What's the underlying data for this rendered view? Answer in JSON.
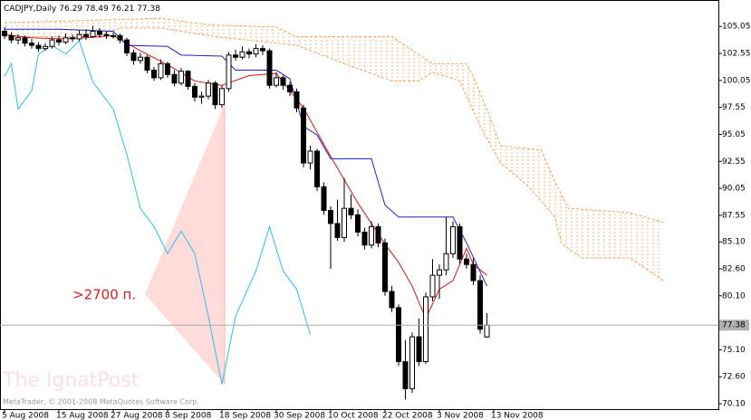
{
  "chart_data": {
    "type": "candlestick",
    "title": "CADJPY,Daily",
    "ohlc": [
      [
        104.6,
        105.0,
        103.9,
        104.2
      ],
      [
        104.2,
        104.5,
        103.5,
        103.8
      ],
      [
        103.8,
        104.3,
        103.4,
        104.0
      ],
      [
        104.0,
        104.2,
        103.2,
        103.5
      ],
      [
        103.5,
        103.9,
        103.0,
        103.3
      ],
      [
        103.3,
        103.6,
        102.7,
        103.0
      ],
      [
        103.0,
        103.5,
        102.8,
        103.2
      ],
      [
        103.2,
        104.1,
        103.0,
        103.8
      ],
      [
        103.8,
        104.2,
        103.3,
        103.6
      ],
      [
        103.6,
        104.4,
        103.4,
        104.0
      ],
      [
        104.0,
        104.3,
        103.6,
        103.9
      ],
      [
        103.9,
        104.7,
        103.7,
        104.3
      ],
      [
        104.3,
        104.8,
        103.8,
        104.1
      ],
      [
        104.1,
        105.1,
        104.0,
        104.6
      ],
      [
        104.6,
        104.9,
        104.0,
        104.3
      ],
      [
        104.3,
        104.6,
        103.9,
        104.2
      ],
      [
        104.2,
        104.5,
        103.9,
        104.2
      ],
      [
        104.2,
        104.4,
        103.5,
        103.8
      ],
      [
        103.8,
        104.0,
        102.3,
        102.6
      ],
      [
        102.6,
        102.9,
        101.5,
        101.9
      ],
      [
        101.9,
        102.6,
        101.6,
        102.2
      ],
      [
        102.2,
        102.4,
        100.7,
        101.0
      ],
      [
        101.0,
        101.3,
        100.0,
        100.3
      ],
      [
        100.3,
        102.0,
        100.1,
        101.6
      ],
      [
        101.6,
        101.8,
        100.3,
        100.6
      ],
      [
        100.6,
        101.0,
        99.5,
        99.8
      ],
      [
        99.8,
        101.2,
        99.6,
        100.9
      ],
      [
        100.9,
        101.0,
        99.2,
        99.5
      ],
      [
        99.5,
        99.8,
        98.1,
        98.5
      ],
      [
        98.5,
        99.0,
        97.9,
        98.6
      ],
      [
        98.6,
        100.1,
        98.3,
        99.8
      ],
      [
        99.8,
        100.0,
        97.4,
        97.8
      ],
      [
        97.8,
        99.6,
        97.5,
        99.3
      ],
      [
        99.3,
        102.7,
        99.0,
        102.4
      ],
      [
        102.4,
        102.9,
        101.9,
        102.2
      ],
      [
        102.2,
        103.2,
        102.0,
        102.7
      ],
      [
        102.7,
        103.0,
        102.1,
        102.5
      ],
      [
        102.5,
        103.4,
        102.2,
        103.0
      ],
      [
        103.0,
        103.3,
        102.4,
        102.8
      ],
      [
        102.8,
        103.0,
        99.3,
        99.6
      ],
      [
        99.6,
        100.8,
        99.4,
        100.3
      ],
      [
        100.3,
        100.5,
        99.2,
        99.6
      ],
      [
        99.6,
        99.9,
        98.6,
        99.0
      ],
      [
        99.0,
        99.3,
        97.1,
        97.5
      ],
      [
        97.5,
        97.8,
        92.0,
        92.4
      ],
      [
        92.4,
        94.0,
        91.8,
        93.5
      ],
      [
        93.5,
        93.7,
        89.8,
        90.2
      ],
      [
        90.2,
        90.6,
        87.6,
        88.0
      ],
      [
        88.0,
        88.4,
        82.6,
        86.8
      ],
      [
        86.8,
        89.0,
        85.2,
        85.5
      ],
      [
        85.5,
        91.0,
        85.1,
        88.2
      ],
      [
        88.2,
        89.5,
        87.2,
        87.6
      ],
      [
        87.6,
        88.1,
        85.6,
        86.0
      ],
      [
        86.0,
        86.4,
        84.4,
        84.8
      ],
      [
        84.8,
        87.0,
        84.5,
        86.5
      ],
      [
        86.5,
        86.8,
        84.6,
        85.0
      ],
      [
        85.0,
        85.4,
        80.1,
        80.5
      ],
      [
        80.5,
        81.0,
        78.6,
        79.0
      ],
      [
        79.0,
        79.3,
        73.6,
        74.0
      ],
      [
        74.0,
        76.0,
        70.5,
        71.5
      ],
      [
        71.5,
        76.7,
        71.1,
        76.3
      ],
      [
        76.3,
        78.0,
        73.6,
        74.0
      ],
      [
        74.0,
        80.4,
        73.8,
        80.0
      ],
      [
        80.0,
        83.5,
        79.6,
        82.0
      ],
      [
        82.0,
        83.0,
        79.8,
        82.5
      ],
      [
        82.5,
        87.4,
        82.0,
        84.0
      ],
      [
        84.0,
        87.0,
        83.6,
        86.5
      ],
      [
        86.5,
        86.8,
        83.1,
        83.5
      ],
      [
        83.5,
        84.0,
        82.6,
        83.0
      ],
      [
        83.0,
        83.6,
        81.1,
        81.5
      ],
      [
        81.5,
        82.0,
        76.6,
        77.0
      ],
      [
        76.29,
        78.49,
        76.21,
        77.38
      ]
    ],
    "series": [
      {
        "color": "#e01010",
        "x": [
          0,
          4,
          8,
          12,
          16,
          20,
          24,
          28,
          32,
          36,
          40,
          44,
          48,
          52,
          56,
          58,
          60,
          62,
          64,
          66,
          68,
          69,
          71
        ],
        "values": [
          104.3,
          104.0,
          103.9,
          104.0,
          104.2,
          102.8,
          101.5,
          100.0,
          99.6,
          100.5,
          100.7,
          97.5,
          93.0,
          88.7,
          84.9,
          83.2,
          81.0,
          78.0,
          80.7,
          81.5,
          84.5,
          83.0,
          82.0
        ]
      },
      {
        "color": "#2020c0",
        "x": [
          0,
          8,
          16,
          18,
          24,
          26,
          32,
          34,
          40,
          42,
          44,
          46,
          48,
          54,
          56,
          58,
          66,
          68,
          71
        ],
        "values": [
          104.8,
          104.8,
          104.6,
          103.3,
          103.2,
          102.4,
          102.3,
          101.0,
          101.0,
          100.2,
          95.8,
          95.0,
          92.8,
          92.8,
          88.5,
          87.4,
          87.4,
          85.0,
          81.0
        ]
      },
      {
        "color": "#33bbee",
        "x": [
          0,
          1,
          2,
          4,
          5,
          7,
          9,
          11,
          13,
          16,
          18,
          20,
          22,
          24,
          26,
          28,
          30,
          32,
          34,
          37,
          39,
          41,
          43,
          45
        ],
        "values": [
          100.4,
          101.6,
          97.4,
          99.1,
          102.5,
          103.3,
          102.5,
          103.7,
          99.9,
          97.4,
          93.2,
          88.2,
          86.5,
          84.0,
          86.1,
          84.0,
          78.2,
          71.9,
          78.2,
          82.4,
          86.5,
          82.4,
          80.7,
          76.5
        ]
      },
      {
        "color": "#f4a460",
        "style": "dashed",
        "x": [
          0,
          23,
          30,
          40,
          43,
          57,
          63,
          68,
          69,
          71,
          73,
          79,
          81,
          83,
          92,
          97
        ],
        "values": [
          105.4,
          105.8,
          105.2,
          105.0,
          104.1,
          104.1,
          101.6,
          101.6,
          100.4,
          97.4,
          94.0,
          93.6,
          90.7,
          88.2,
          87.8,
          86.9
        ]
      },
      {
        "color": "#f4a460",
        "style": "dashed",
        "x": [
          0,
          13,
          17,
          23,
          31,
          43,
          50,
          57,
          61,
          63,
          67,
          70,
          73,
          77,
          81,
          82,
          85,
          92,
          97
        ],
        "values": [
          104.1,
          104.1,
          104.9,
          104.9,
          104.1,
          103.3,
          101.6,
          100.0,
          100.0,
          100.8,
          100.0,
          95.8,
          92.4,
          90.3,
          87.4,
          84.9,
          83.6,
          83.6,
          81.5
        ]
      }
    ],
    "cloud_color": "#f4a460",
    "xlim": [
      -0.6667,
      105.0667
    ],
    "xticks": [
      {
        "value": 0,
        "label": "5 Aug 2008"
      },
      {
        "value": 8,
        "label": "15 Aug 2008"
      },
      {
        "value": 16,
        "label": "27 Aug 2008"
      },
      {
        "value": 24,
        "label": "8 Sep 2008"
      },
      {
        "value": 32,
        "label": "18 Sep 2008"
      },
      {
        "value": 40,
        "label": "30 Sep 2008"
      },
      {
        "value": 48,
        "label": "10 Oct 2008"
      },
      {
        "value": 56,
        "label": "22 Oct 2008"
      },
      {
        "value": 64,
        "label": "3 Nov 2008"
      },
      {
        "value": 72,
        "label": "13 Nov 2008"
      }
    ],
    "ylim": [
      69.6,
      107.5
    ],
    "yticks": [
      105.05,
      102.55,
      100.05,
      97.55,
      95.05,
      92.55,
      90.05,
      87.55,
      {
        "value": 85.1,
        "label": "85.10"
      },
      {
        "value": 82.6,
        "label": "82.60"
      },
      {
        "value": 80.1,
        "label": "80.10"
      },
      {
        "value": 75.1,
        "label": "75.10"
      },
      {
        "value": 72.6,
        "label": "72.60"
      },
      {
        "value": 70.1,
        "label": "70.10"
      }
    ],
    "annotations": [
      {
        "text": ">2700 п."
      }
    ],
    "watermark": "The IgnatPost",
    "copyright": "MetaTrader, © 2001-2008 MetaQuotes Software Corp."
  }
}
